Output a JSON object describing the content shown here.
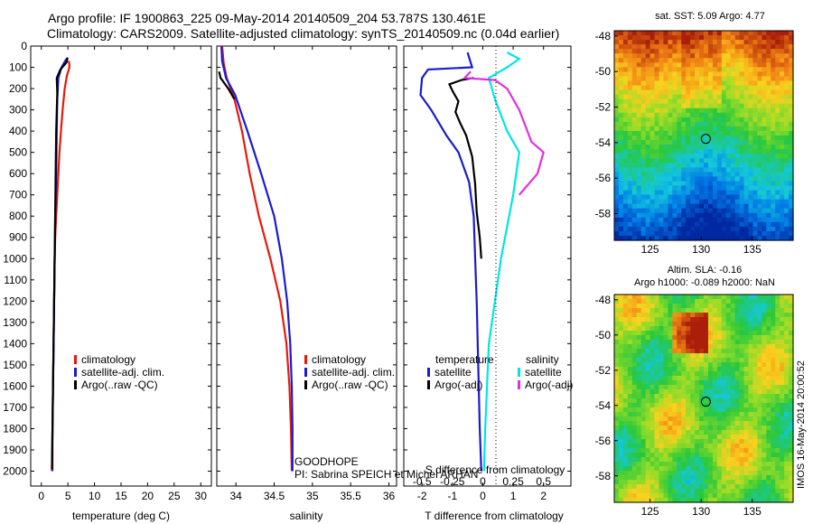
{
  "header": {
    "title_line1": "Argo profile: IF 1900863_225 09-May-2014 20140509_204 53.787S 130.461E",
    "title_line2": "Climatology: CARS2009. Satellite-adjusted climatology: synTS_20140509.nc (0.04d earlier)"
  },
  "colors": {
    "climatology": "#e8180c",
    "satellite": "#1a1ad0",
    "argo": "#000000",
    "salinity_satellite": "#00e5e5",
    "salinity_argo": "#e030e0"
  },
  "annotations": {
    "project": "GOODHOPE",
    "pi": "PI: Sabrina SPEICH et Michel ARHAN",
    "footer": "IMOS 16-May-2014 20:00:52"
  },
  "chart_data": [
    {
      "type": "line",
      "name": "temperature_profile",
      "xlabel": "temperature (deg C)",
      "xlim": [
        -2,
        32
      ],
      "ylim": [
        2070,
        0
      ],
      "x_ticks": [
        0,
        5,
        10,
        15,
        20,
        25,
        30
      ],
      "y_ticks": [
        0,
        100,
        200,
        300,
        400,
        500,
        600,
        700,
        800,
        900,
        1000,
        1100,
        1200,
        1300,
        1400,
        1500,
        1600,
        1700,
        1800,
        1900,
        2000
      ],
      "legend": [
        "climatology",
        "satellite-adj. clim.",
        "Argo(..raw -QC)"
      ],
      "series": [
        {
          "name": "climatology",
          "points": [
            [
              5.2,
              70
            ],
            [
              5.3,
              100
            ],
            [
              4.8,
              140
            ],
            [
              4.4,
              200
            ],
            [
              4.0,
              300
            ],
            [
              3.7,
              400
            ],
            [
              3.4,
              500
            ],
            [
              3.2,
              600
            ],
            [
              3.0,
              700
            ],
            [
              2.8,
              800
            ],
            [
              2.6,
              900
            ],
            [
              2.5,
              1000
            ],
            [
              2.4,
              1200
            ],
            [
              2.3,
              1400
            ],
            [
              2.2,
              1600
            ],
            [
              2.1,
              1800
            ],
            [
              2.1,
              2000
            ]
          ]
        },
        {
          "name": "satellite-adj. clim.",
          "points": [
            [
              5.0,
              55
            ],
            [
              4.6,
              65
            ],
            [
              3.8,
              100
            ],
            [
              3.2,
              150
            ],
            [
              3.0,
              250
            ],
            [
              2.9,
              400
            ],
            [
              2.8,
              600
            ],
            [
              2.6,
              800
            ],
            [
              2.5,
              1000
            ],
            [
              2.4,
              1200
            ],
            [
              2.3,
              1400
            ],
            [
              2.2,
              1600
            ],
            [
              2.1,
              1800
            ],
            [
              2.0,
              2000
            ]
          ]
        },
        {
          "name": "Argo(..raw -QC)",
          "points": [
            [
              4.9,
              55
            ],
            [
              4.8,
              75
            ],
            [
              3.6,
              110
            ],
            [
              2.9,
              150
            ],
            [
              3.0,
              220
            ],
            [
              2.8,
              400
            ],
            [
              2.7,
              600
            ],
            [
              2.6,
              800
            ],
            [
              2.5,
              1000
            ],
            [
              2.4,
              1200
            ],
            [
              2.3,
              1400
            ],
            [
              2.2,
              1600
            ],
            [
              2.1,
              1800
            ],
            [
              2.0,
              1990
            ]
          ]
        }
      ]
    },
    {
      "type": "line",
      "name": "salinity_profile",
      "xlabel": "salinity",
      "xlim": [
        33.75,
        36.1
      ],
      "ylim": [
        2070,
        0
      ],
      "x_ticks": [
        34,
        34.5,
        35,
        35.5,
        36
      ],
      "legend": [
        "climatology",
        "satellite-adj. clim.",
        "Argo(..raw -QC)"
      ],
      "series": [
        {
          "name": "climatology",
          "points": [
            [
              33.82,
              0
            ],
            [
              33.84,
              80
            ],
            [
              33.88,
              150
            ],
            [
              33.98,
              250
            ],
            [
              34.08,
              400
            ],
            [
              34.18,
              600
            ],
            [
              34.3,
              800
            ],
            [
              34.45,
              1000
            ],
            [
              34.58,
              1200
            ],
            [
              34.66,
              1400
            ],
            [
              34.7,
              1600
            ],
            [
              34.72,
              1800
            ],
            [
              34.73,
              2000
            ]
          ]
        },
        {
          "name": "satellite-adj. clim.",
          "points": [
            [
              33.81,
              0
            ],
            [
              33.82,
              70
            ],
            [
              33.87,
              150
            ],
            [
              33.99,
              230
            ],
            [
              34.15,
              400
            ],
            [
              34.33,
              600
            ],
            [
              34.5,
              800
            ],
            [
              34.6,
              1000
            ],
            [
              34.67,
              1200
            ],
            [
              34.71,
              1400
            ],
            [
              34.73,
              1600
            ],
            [
              34.74,
              1800
            ],
            [
              34.74,
              2000
            ]
          ]
        },
        {
          "name": "Argo(..raw -QC)",
          "points": [
            [
              33.78,
              120
            ],
            [
              33.8,
              150
            ],
            [
              33.9,
              200
            ],
            [
              33.98,
              250
            ]
          ]
        }
      ]
    },
    {
      "type": "line",
      "name": "difference_profile",
      "xlabel": "T difference from climatology",
      "xlabel_top": "S difference from climatology",
      "xlim": [
        -2.6,
        2.9
      ],
      "ylim": [
        2070,
        0
      ],
      "x_ticks": [
        -2,
        -1,
        0,
        1,
        2
      ],
      "x_ticks_top": [
        -0.5,
        -0.25,
        0,
        0.25,
        0.5
      ],
      "legend_titles": [
        "temperature",
        "salinity"
      ],
      "legend": [
        "satellite",
        "Argo(-adj)",
        "satellite",
        "Argo(-adj)"
      ],
      "series": [
        {
          "name": "T satellite",
          "points": [
            [
              -0.5,
              30
            ],
            [
              -0.35,
              100
            ],
            [
              -1.8,
              110
            ],
            [
              -2.0,
              150
            ],
            [
              -2.05,
              230
            ],
            [
              -1.7,
              300
            ],
            [
              -1.2,
              420
            ],
            [
              -0.8,
              500
            ],
            [
              -0.45,
              640
            ],
            [
              -0.3,
              800
            ],
            [
              -0.25,
              1000
            ],
            [
              -0.2,
              1200
            ],
            [
              -0.15,
              1500
            ],
            [
              -0.1,
              1800
            ],
            [
              -0.05,
              2000
            ]
          ]
        },
        {
          "name": "T Argo(-adj)",
          "points": [
            [
              -0.3,
              150
            ],
            [
              -0.7,
              160
            ],
            [
              -1.1,
              180
            ],
            [
              -1.0,
              210
            ],
            [
              -0.8,
              260
            ],
            [
              -0.9,
              310
            ],
            [
              -0.75,
              360
            ],
            [
              -0.55,
              420
            ],
            [
              -0.35,
              520
            ],
            [
              -0.25,
              650
            ],
            [
              -0.2,
              780
            ],
            [
              -0.1,
              900
            ],
            [
              -0.05,
              1000
            ]
          ]
        },
        {
          "name": "S satellite",
          "points": [
            [
              0.2,
              30
            ],
            [
              0.3,
              60
            ],
            [
              0.2,
              100
            ],
            [
              0.05,
              150
            ],
            [
              0.1,
              250
            ],
            [
              0.2,
              400
            ],
            [
              0.3,
              500
            ],
            [
              0.25,
              700
            ],
            [
              0.15,
              1000
            ],
            [
              0.05,
              1400
            ],
            [
              0.02,
              1800
            ],
            [
              0.01,
              2000
            ]
          ]
        },
        {
          "name": "S Argo(-adj)",
          "points": [
            [
              -0.1,
              120
            ],
            [
              -0.15,
              150
            ],
            [
              0.1,
              160
            ],
            [
              0.2,
              200
            ],
            [
              0.3,
              300
            ],
            [
              0.4,
              450
            ],
            [
              0.5,
              500
            ],
            [
              0.45,
              600
            ],
            [
              0.3,
              700
            ]
          ]
        }
      ]
    },
    {
      "type": "heatmap",
      "name": "sst_map",
      "title": "sat. SST: 5.09 Argo: 4.77",
      "x_ticks": [
        125,
        130,
        135
      ],
      "y_ticks": [
        -48,
        -50,
        -52,
        -54,
        -56,
        -58
      ],
      "xlim": [
        121.5,
        139
      ],
      "ylim": [
        -59.5,
        -47.7
      ],
      "marker": [
        130.461,
        -53.787
      ]
    },
    {
      "type": "heatmap",
      "name": "sla_map",
      "title_line1": "Altim. SLA: -0.16",
      "title_line2": "Argo h1000: -0.089 h2000: NaN",
      "x_ticks": [
        125,
        130,
        135
      ],
      "y_ticks": [
        -48,
        -50,
        -52,
        -54,
        -56,
        -58
      ],
      "xlim": [
        121.5,
        139
      ],
      "ylim": [
        -59.5,
        -47.7
      ],
      "marker": [
        130.461,
        -53.787
      ]
    }
  ]
}
